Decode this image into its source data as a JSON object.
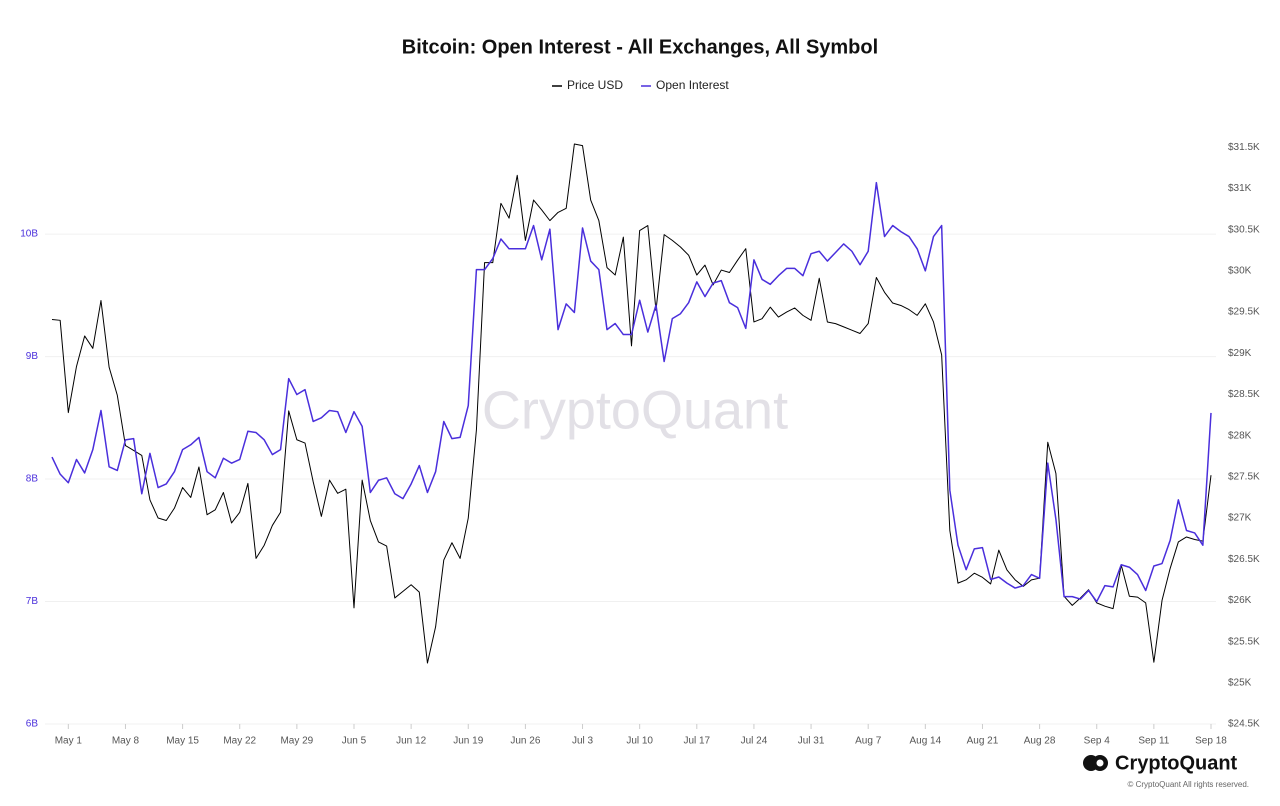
{
  "chart_data": {
    "type": "line",
    "title": "Bitcoin: Open Interest - All Exchanges, All Symbol",
    "watermark": "CryptoQuant",
    "brand": "CryptoQuant",
    "copyright": "© CryptoQuant All rights reserved.",
    "categories": [
      null,
      null,
      "May 1",
      null,
      null,
      null,
      null,
      null,
      null,
      "May 8",
      null,
      null,
      null,
      null,
      null,
      null,
      "May 15",
      null,
      null,
      null,
      null,
      null,
      null,
      "May 22",
      null,
      null,
      null,
      null,
      null,
      null,
      "May 29",
      null,
      null,
      null,
      null,
      null,
      null,
      "Jun 5",
      null,
      null,
      null,
      null,
      null,
      null,
      "Jun 12",
      null,
      null,
      null,
      null,
      null,
      null,
      "Jun 19",
      null,
      null,
      null,
      null,
      null,
      null,
      "Jun 26",
      null,
      null,
      null,
      null,
      null,
      null,
      "Jul 3",
      null,
      null,
      null,
      null,
      null,
      null,
      "Jul 10",
      null,
      null,
      null,
      null,
      null,
      null,
      "Jul 17",
      null,
      null,
      null,
      null,
      null,
      null,
      "Jul 24",
      null,
      null,
      null,
      null,
      null,
      null,
      "Jul 31",
      null,
      null,
      null,
      null,
      null,
      null,
      "Aug 7",
      null,
      null,
      null,
      null,
      null,
      null,
      "Aug 14",
      null,
      null,
      null,
      null,
      null,
      null,
      "Aug 21",
      null,
      null,
      null,
      null,
      null,
      null,
      "Aug 28",
      null,
      null,
      null,
      null,
      null,
      null,
      "Sep 4",
      null,
      null,
      null,
      null,
      null,
      null,
      "Sep 11",
      null,
      null,
      null,
      null,
      null,
      null,
      "Sep 18"
    ],
    "series": [
      {
        "name": "Price USD",
        "color": "#000000",
        "axis": "y2",
        "values": [
          29410,
          29400,
          28280,
          28840,
          29210,
          29060,
          29640,
          28830,
          28490,
          27880,
          27820,
          27760,
          27220,
          27000,
          26970,
          27120,
          27370,
          27250,
          27620,
          27040,
          27100,
          27310,
          26940,
          27070,
          27420,
          26510,
          26670,
          26910,
          27070,
          28300,
          27950,
          27910,
          27440,
          27020,
          27460,
          27300,
          27350,
          25910,
          27460,
          26970,
          26710,
          26660,
          26030,
          26110,
          26190,
          26100,
          25240,
          25680,
          26490,
          26700,
          26510,
          27000,
          28070,
          30100,
          30100,
          30820,
          30640,
          31160,
          30370,
          30860,
          30740,
          30610,
          30710,
          30760,
          31540,
          31520,
          30860,
          30610,
          30040,
          29950,
          30410,
          29090,
          30490,
          30550,
          29520,
          30440,
          30370,
          30290,
          30190,
          29950,
          30070,
          29830,
          30010,
          29980,
          30130,
          30270,
          29380,
          29420,
          29560,
          29440,
          29500,
          29550,
          29460,
          29400,
          29910,
          29380,
          29360,
          29320,
          29280,
          29240,
          29360,
          29920,
          29740,
          29610,
          29580,
          29530,
          29460,
          29600,
          29380,
          28980,
          26850,
          26210,
          26250,
          26330,
          26280,
          26200,
          26610,
          26370,
          26250,
          26170,
          26250,
          26270,
          27920,
          27540,
          26050,
          25940,
          26030,
          26130,
          25970,
          25930,
          25900,
          26430,
          26050,
          26040,
          25970,
          25250,
          26000,
          26390,
          26710,
          26770,
          26740,
          26720,
          27520
        ]
      },
      {
        "name": "Open Interest",
        "color": "#4a2fdc",
        "axis": "y",
        "values": [
          8.18,
          8.04,
          7.97,
          8.16,
          8.05,
          8.24,
          8.56,
          8.1,
          8.07,
          8.32,
          8.33,
          7.88,
          8.21,
          7.93,
          7.96,
          8.06,
          8.24,
          8.28,
          8.34,
          8.06,
          8.01,
          8.17,
          8.13,
          8.16,
          8.39,
          8.38,
          8.32,
          8.2,
          8.24,
          8.82,
          8.69,
          8.73,
          8.47,
          8.5,
          8.56,
          8.55,
          8.38,
          8.55,
          8.43,
          7.89,
          7.99,
          8.01,
          7.88,
          7.84,
          7.96,
          8.11,
          7.89,
          8.06,
          8.47,
          8.33,
          8.34,
          8.6,
          9.71,
          9.71,
          9.8,
          9.96,
          9.88,
          9.88,
          9.88,
          10.07,
          9.79,
          10.04,
          9.22,
          9.43,
          9.36,
          10.05,
          9.78,
          9.71,
          9.22,
          9.27,
          9.18,
          9.18,
          9.46,
          9.2,
          9.42,
          8.96,
          9.31,
          9.35,
          9.44,
          9.61,
          9.49,
          9.6,
          9.62,
          9.44,
          9.4,
          9.23,
          9.79,
          9.63,
          9.59,
          9.66,
          9.72,
          9.72,
          9.66,
          9.84,
          9.86,
          9.78,
          9.85,
          9.92,
          9.86,
          9.75,
          9.86,
          10.42,
          9.98,
          10.07,
          10.02,
          9.98,
          9.88,
          9.7,
          9.98,
          10.07,
          7.91,
          7.46,
          7.26,
          7.43,
          7.44,
          7.18,
          7.2,
          7.15,
          7.11,
          7.13,
          7.22,
          7.19,
          8.13,
          7.67,
          7.04,
          7.04,
          7.02,
          7.09,
          7.0,
          7.13,
          7.12,
          7.3,
          7.28,
          7.22,
          7.09,
          7.29,
          7.31,
          7.5,
          7.83,
          7.58,
          7.56,
          7.46,
          8.54
        ]
      }
    ],
    "ylim": [
      6,
      10.85
    ],
    "yticks": [
      {
        "value": 6,
        "label": "6B"
      },
      {
        "value": 7,
        "label": "7B"
      },
      {
        "value": 8,
        "label": "8B"
      },
      {
        "value": 9,
        "label": "9B"
      },
      {
        "value": 10,
        "label": "10B"
      }
    ],
    "y2lim": [
      24500,
      31710
    ],
    "y2ticks": [
      {
        "value": 24500,
        "label": "$24.5K"
      },
      {
        "value": 25000,
        "label": "$25K"
      },
      {
        "value": 25500,
        "label": "$25.5K"
      },
      {
        "value": 26000,
        "label": "$26K"
      },
      {
        "value": 26500,
        "label": "$26.5K"
      },
      {
        "value": 27000,
        "label": "$27K"
      },
      {
        "value": 27500,
        "label": "$27.5K"
      },
      {
        "value": 28000,
        "label": "$28K"
      },
      {
        "value": 28500,
        "label": "$28.5K"
      },
      {
        "value": 29000,
        "label": "$29K"
      },
      {
        "value": 29500,
        "label": "$29.5K"
      },
      {
        "value": 30000,
        "label": "$30K"
      },
      {
        "value": 30500,
        "label": "$30.5K"
      },
      {
        "value": 31000,
        "label": "$31K"
      },
      {
        "value": 31500,
        "label": "$31.5K"
      }
    ],
    "grid": true,
    "legend": "top"
  }
}
